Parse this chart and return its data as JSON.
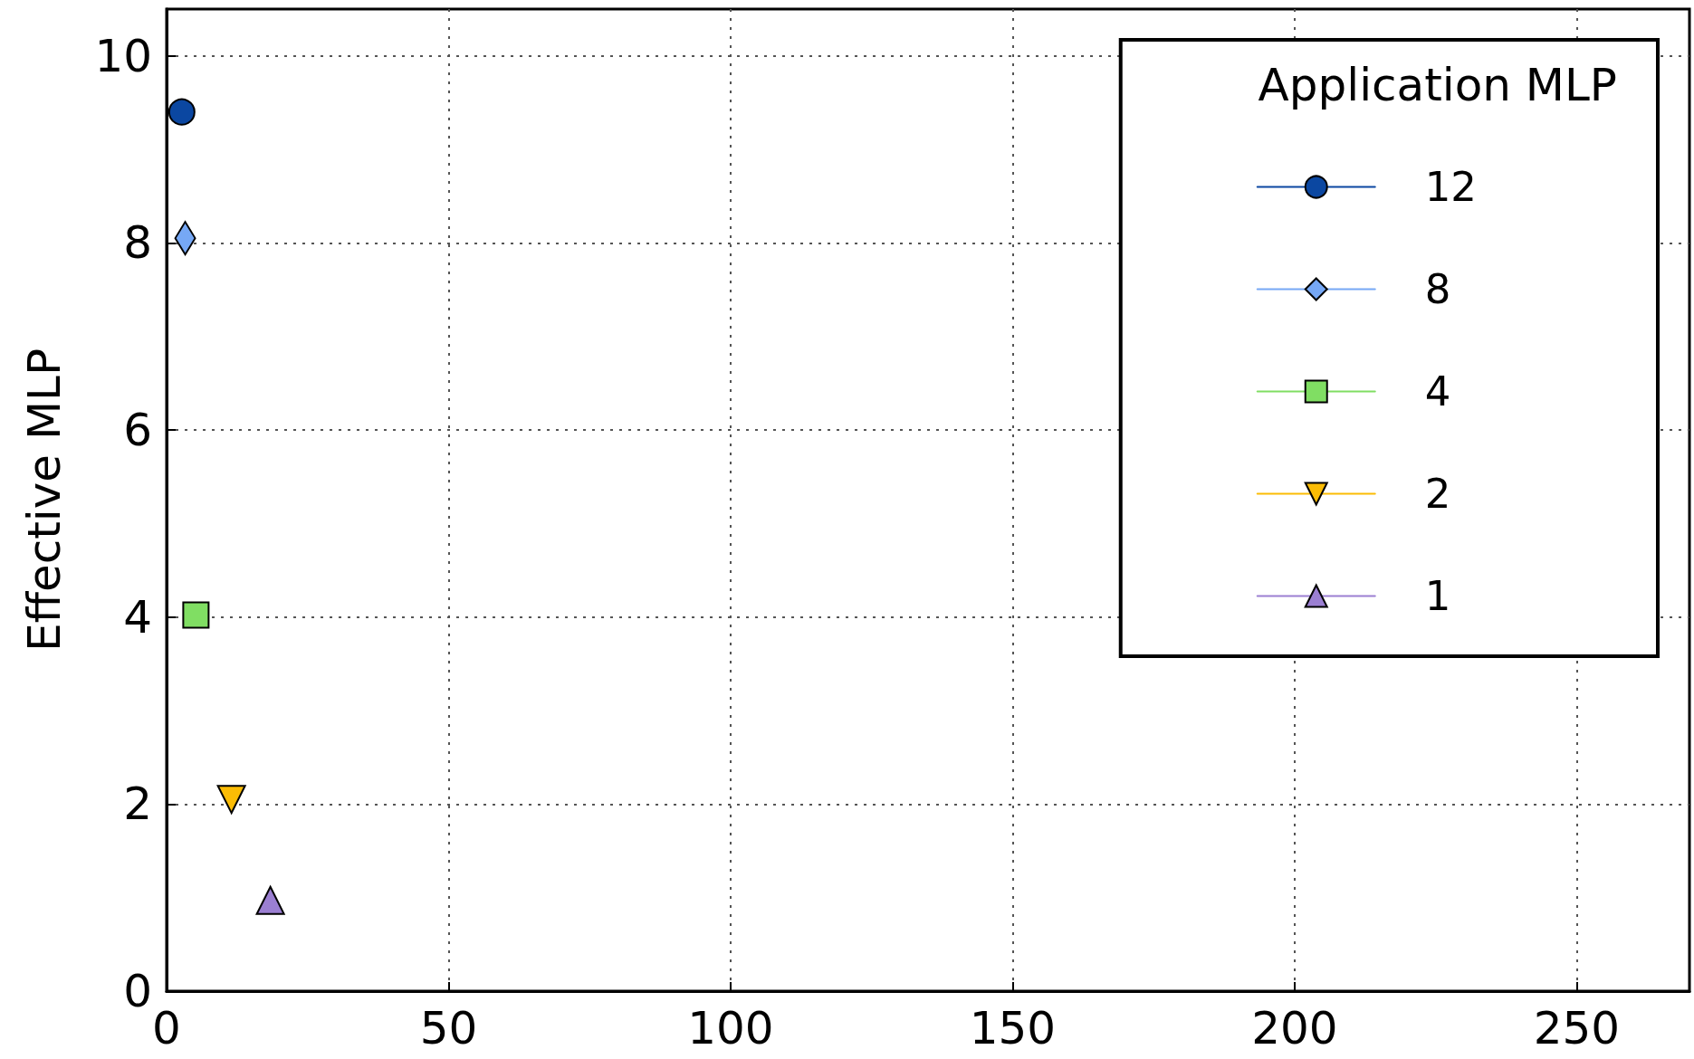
{
  "chart_data": {
    "type": "line",
    "ylabel": "Effective MLP",
    "legend_title": "Application MLP",
    "legend": "top right",
    "grid": true,
    "line_style": "solid",
    "xlim": [
      0,
      270
    ],
    "xticks": [
      0,
      50,
      100,
      150,
      200,
      250
    ],
    "ylim": [
      0,
      10.5
    ],
    "yticks": [
      0,
      2,
      4,
      6,
      8,
      10
    ],
    "series": [
      {
        "name": "12",
        "color": "#0b47a1",
        "marker": "circle",
        "x": [
          2.7
        ],
        "values": [
          9.4
        ]
      },
      {
        "name": "8",
        "color": "#76a8f5",
        "marker": "diamond",
        "x": [
          3.3
        ],
        "values": [
          8.05
        ]
      },
      {
        "name": "4",
        "color": "#80de63",
        "marker": "square",
        "x": [
          5.2
        ],
        "values": [
          4.02
        ]
      },
      {
        "name": "2",
        "color": "#fbbc05",
        "marker": "triangle_down",
        "x": [
          11.5
        ],
        "values": [
          2.05
        ]
      },
      {
        "name": "1",
        "color": "#9b7fd2",
        "marker": "triangle",
        "x": [
          18.4
        ],
        "values": [
          0.97
        ]
      }
    ]
  }
}
